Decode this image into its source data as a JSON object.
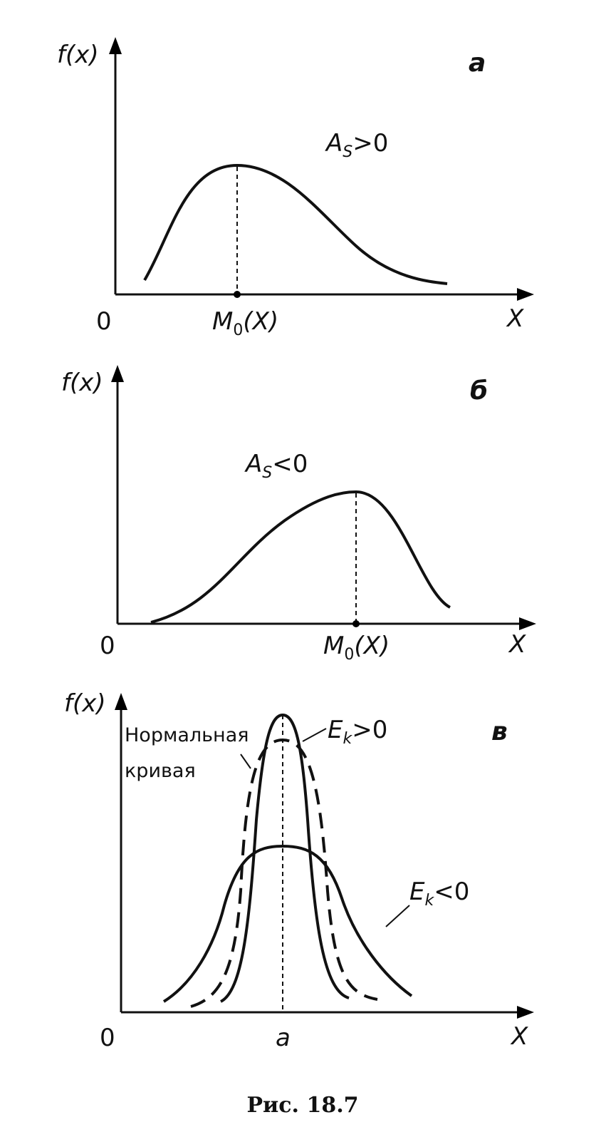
{
  "panel_a": {
    "y_label": "f(x)",
    "letter": "а",
    "annotation": {
      "main": "A",
      "sub": "S",
      "rest": ">0"
    },
    "origin": "0",
    "mode_label": {
      "main": "M",
      "sub": "0",
      "rest": "(X)"
    },
    "x_label": "X"
  },
  "panel_b": {
    "y_label": "f(x)",
    "letter": "б",
    "annotation": {
      "main": "A",
      "sub": "S",
      "rest": "<0"
    },
    "origin": "0",
    "mode_label": {
      "main": "M",
      "sub": "0",
      "rest": "(X)"
    },
    "x_label": "X"
  },
  "panel_c": {
    "y_label": "f(x)",
    "letter": "в",
    "normal_label": [
      "Нормальная",
      "кривая"
    ],
    "positive_label": {
      "main": "E",
      "sub": "k",
      "rest": ">0"
    },
    "negative_label": {
      "main": "E",
      "sub": "k",
      "rest": "<0"
    },
    "origin": "0",
    "center_label": "a",
    "x_label": "X"
  },
  "caption": "Рис. 18.7"
}
